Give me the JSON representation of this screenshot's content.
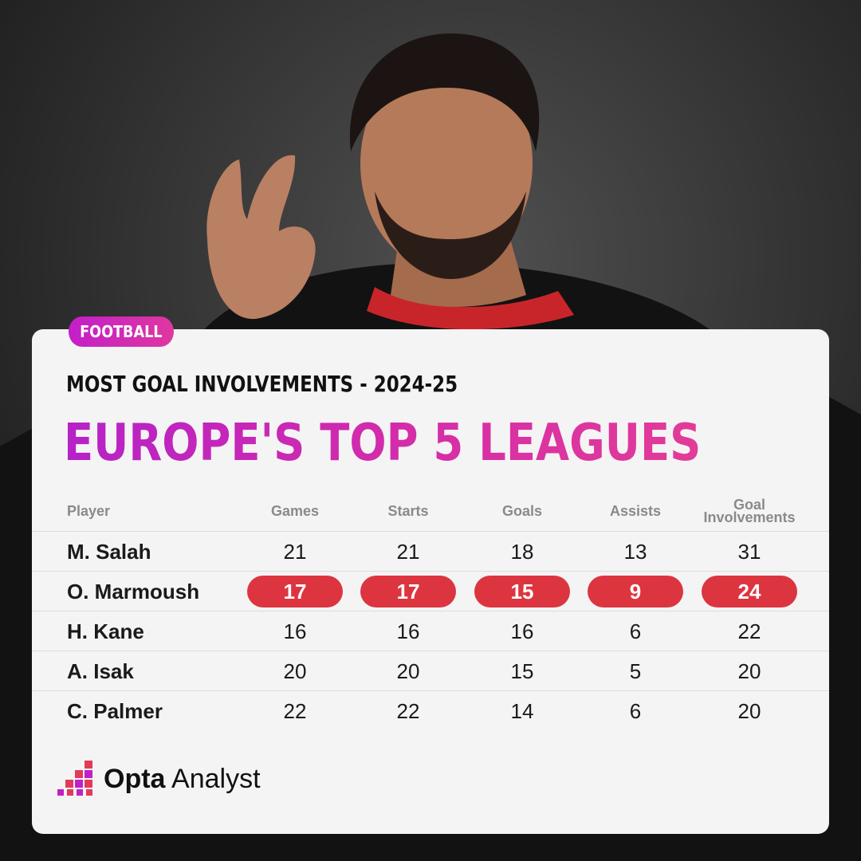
{
  "badge": "FOOTBALL",
  "subtitle": "MOST GOAL INVOLVEMENTS - 2024-25",
  "title": "EUROPE'S TOP 5 LEAGUES",
  "columns": [
    "Player",
    "Games",
    "Starts",
    "Goals",
    "Assists",
    "Goal Involvements"
  ],
  "rows": [
    {
      "player": "M. Salah",
      "games": "21",
      "starts": "21",
      "goals": "18",
      "assists": "13",
      "gi": "31"
    },
    {
      "player": "O. Marmoush",
      "games": "17",
      "starts": "17",
      "goals": "15",
      "assists": "9",
      "gi": "24"
    },
    {
      "player": "H. Kane",
      "games": "16",
      "starts": "16",
      "goals": "16",
      "assists": "6",
      "gi": "22"
    },
    {
      "player": "A. Isak",
      "games": "20",
      "starts": "20",
      "goals": "15",
      "assists": "5",
      "gi": "20"
    },
    {
      "player": "C. Palmer",
      "games": "22",
      "starts": "22",
      "goals": "14",
      "assists": "6",
      "gi": "20"
    }
  ],
  "highlight_color": "#dc3540",
  "accent_gradient": [
    "#b621c8",
    "#e23b98"
  ],
  "logo": {
    "brand_bold": "Opta",
    "brand_light": "Analyst"
  }
}
